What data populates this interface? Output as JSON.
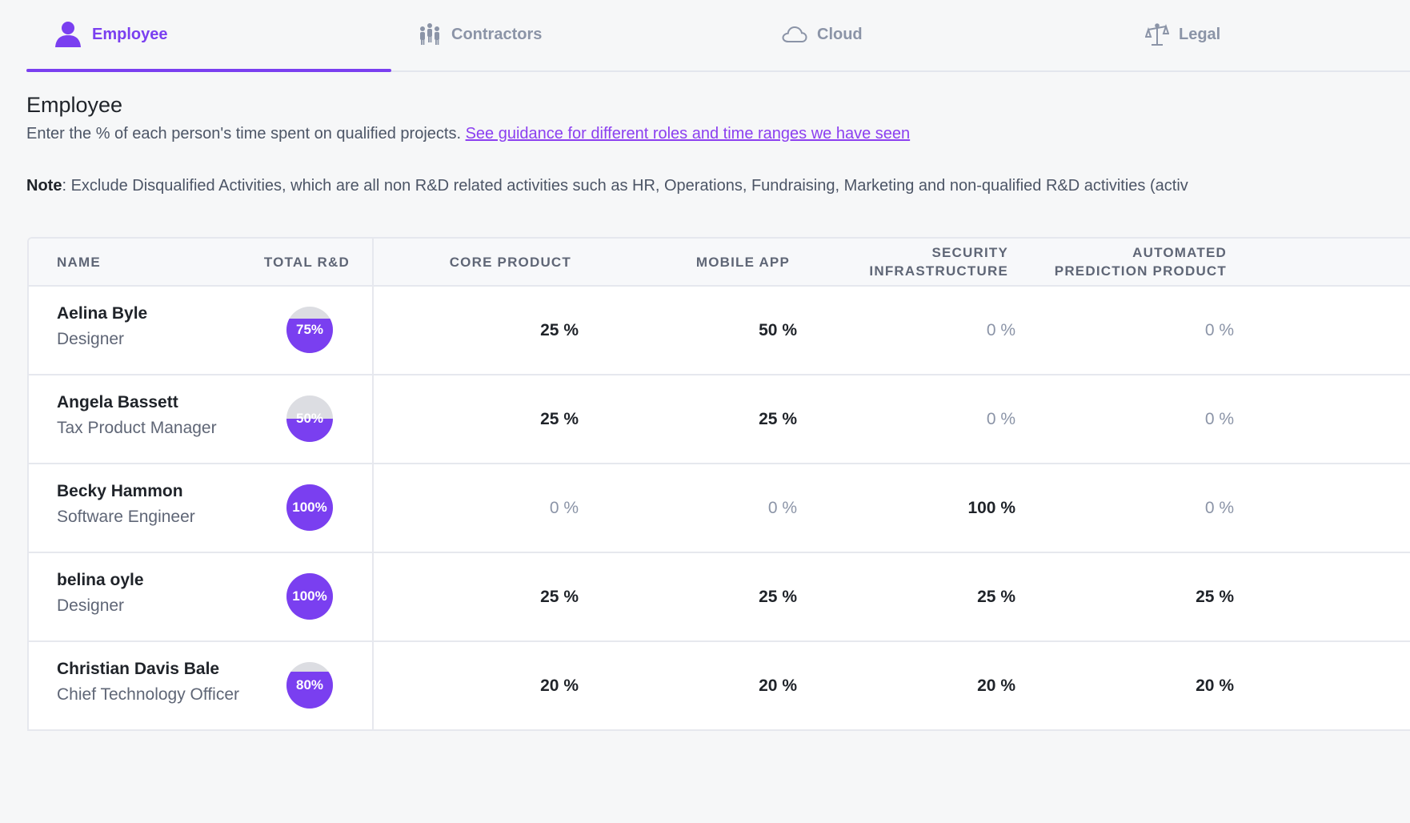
{
  "tabs": [
    {
      "label": "Employee",
      "icon": "person-icon",
      "active": true
    },
    {
      "label": "Contractors",
      "icon": "people-group-icon",
      "active": false
    },
    {
      "label": "Cloud",
      "icon": "cloud-icon",
      "active": false
    },
    {
      "label": "Legal",
      "icon": "scales-icon",
      "active": false
    }
  ],
  "section": {
    "title": "Employee",
    "description": "Enter the % of each person's time spent on qualified projects.",
    "guidance_link": "See guidance for different roles and time ranges we have seen",
    "note_label": "Note",
    "note_text": ": Exclude Disqualified Activities, which are all non R&D related activities such as HR, Operations, Fundraising, Marketing and non-qualified R&D activities (activ"
  },
  "table": {
    "headers": {
      "name": "NAME",
      "total": "TOTAL R&D",
      "core": "CORE PRODUCT",
      "mobile": "MOBILE APP",
      "security_line1": "SECURITY",
      "security_line2": "INFRASTRUCTURE",
      "automated_line1": "AUTOMATED",
      "automated_line2": "PREDICTION PRODUCT"
    },
    "rows": [
      {
        "name": "Aelina Byle",
        "role": "Designer",
        "total": "75%",
        "total_fraction": 0.75,
        "core": "25 %",
        "mobile": "50 %",
        "security": "0 %",
        "automated": "0 %"
      },
      {
        "name": "Angela Bassett",
        "role": "Tax Product Manager",
        "total": "50%",
        "total_fraction": 0.5,
        "core": "25 %",
        "mobile": "25 %",
        "security": "0 %",
        "automated": "0 %"
      },
      {
        "name": "Becky Hammon",
        "role": "Software Engineer",
        "total": "100%",
        "total_fraction": 1.0,
        "core": "0 %",
        "mobile": "0 %",
        "security": "100 %",
        "automated": "0 %"
      },
      {
        "name": "belina oyle",
        "role": "Designer",
        "total": "100%",
        "total_fraction": 1.0,
        "core": "25 %",
        "mobile": "25 %",
        "security": "25 %",
        "automated": "25 %"
      },
      {
        "name": "Christian Davis Bale",
        "role": "Chief Technology Officer",
        "total": "80%",
        "total_fraction": 0.8,
        "core": "20 %",
        "mobile": "20 %",
        "security": "20 %",
        "automated": "20 %"
      }
    ]
  },
  "colors": {
    "accent": "#7a3ff0",
    "badge_empty": "#dcdde2",
    "muted": "#8b94a7"
  }
}
